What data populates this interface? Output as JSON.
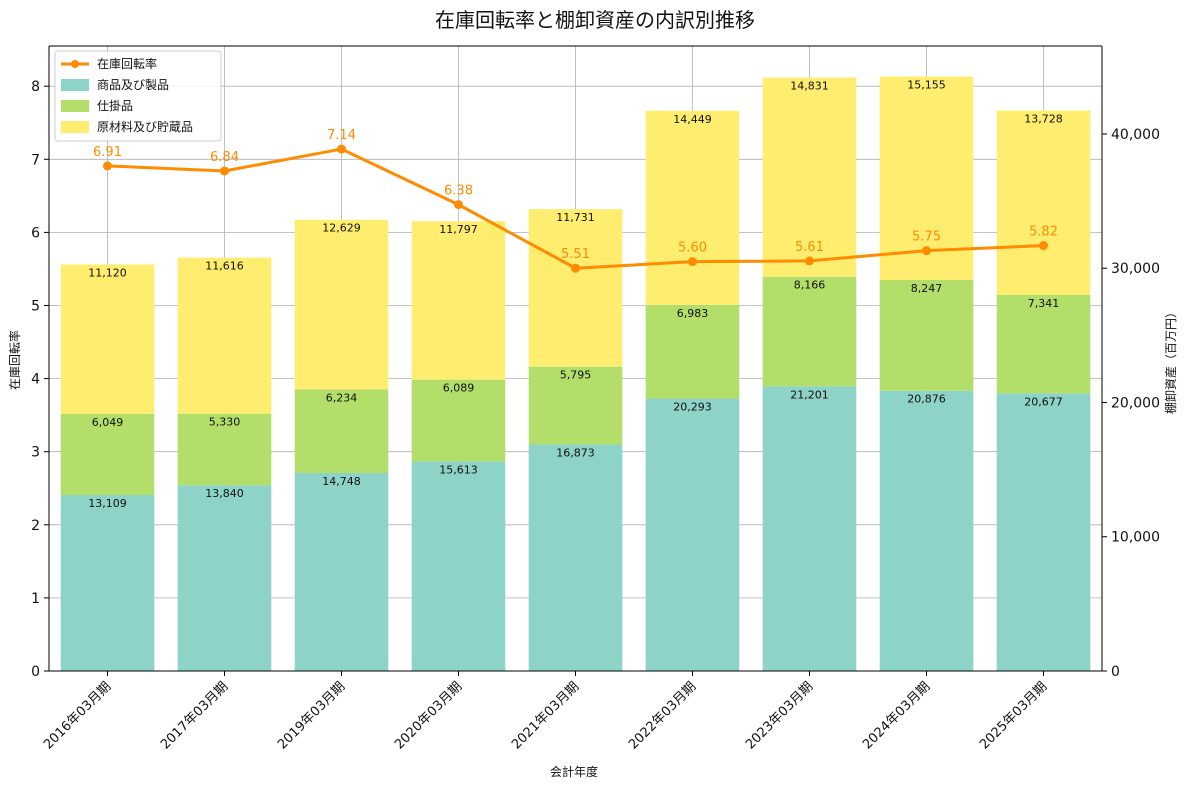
{
  "chart_data": {
    "type": "bar",
    "title": "在庫回転率と棚卸資産の内訳別推移",
    "xlabel": "会計年度",
    "ylabel_left": "在庫回転率",
    "ylabel_right": "棚卸資産（百万円）",
    "categories": [
      "2016年03月期",
      "2017年03月期",
      "2019年03月期",
      "2020年03月期",
      "2021年03月期",
      "2022年03月期",
      "2023年03月期",
      "2024年03月期",
      "2025年03月期"
    ],
    "bar_series": [
      {
        "name": "商品及び製品",
        "color": "#8dd3c7",
        "values": [
          13109,
          13840,
          14748,
          15613,
          16873,
          20293,
          21201,
          20876,
          20677
        ],
        "labels": [
          "13,109",
          "13,840",
          "14,748",
          "15,613",
          "16,873",
          "20,293",
          "21,201",
          "20,876",
          "20,677"
        ]
      },
      {
        "name": "仕掛品",
        "color": "#b3de69",
        "values": [
          6049,
          5330,
          6234,
          6089,
          5795,
          6983,
          8166,
          8247,
          7341
        ],
        "labels": [
          "6,049",
          "5,330",
          "6,234",
          "6,089",
          "5,795",
          "6,983",
          "8,166",
          "8,247",
          "7,341"
        ]
      },
      {
        "name": "原材料及び貯蔵品",
        "color": "#ffed6f",
        "values": [
          11120,
          11616,
          12629,
          11797,
          11731,
          14449,
          14831,
          15155,
          13728
        ],
        "labels": [
          "11,120",
          "11,616",
          "12,629",
          "11,797",
          "11,731",
          "14,449",
          "14,831",
          "15,155",
          "13,728"
        ]
      }
    ],
    "line_series": {
      "name": "在庫回転率",
      "color": "#ff8c00",
      "values": [
        6.91,
        6.84,
        7.14,
        6.38,
        5.51,
        5.6,
        5.61,
        5.75,
        5.82
      ],
      "labels": [
        "6.91",
        "6.84",
        "7.14",
        "6.38",
        "5.51",
        "5.60",
        "5.61",
        "5.75",
        "5.82"
      ]
    },
    "ylim_left": [
      0,
      8.55
    ],
    "ylim_right": [
      0,
      46550
    ],
    "yticks_left": [
      0,
      1,
      2,
      3,
      4,
      5,
      6,
      7,
      8
    ],
    "yticks_left_labels": [
      "0",
      "1",
      "2",
      "3",
      "4",
      "5",
      "6",
      "7",
      "8"
    ],
    "yticks_right": [
      0,
      10000,
      20000,
      30000,
      40000
    ],
    "yticks_right_labels": [
      "0",
      "10,000",
      "20,000",
      "30,000",
      "40,000"
    ],
    "grid": true,
    "legend_position": "top-left"
  }
}
